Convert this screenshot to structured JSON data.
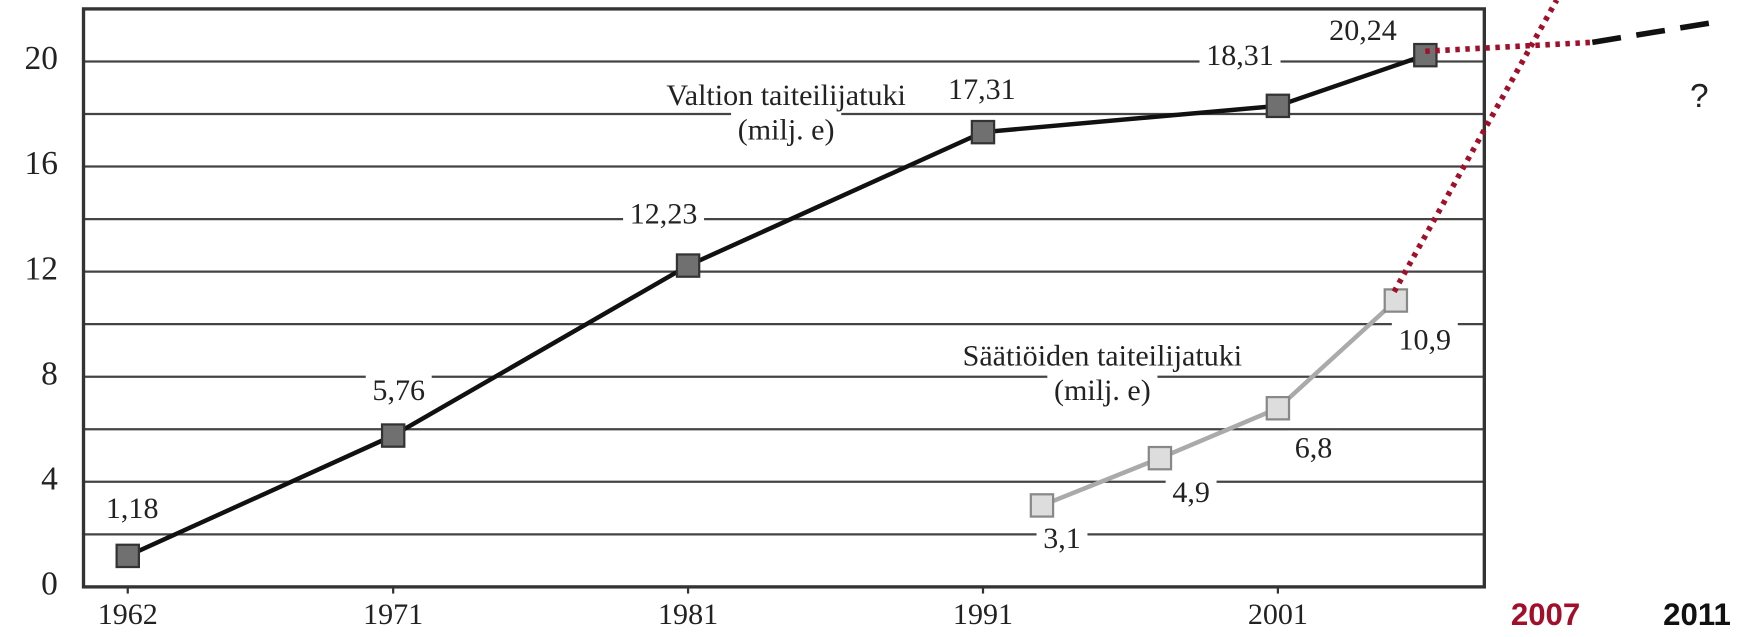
{
  "chart_data": {
    "type": "line",
    "xlim": [
      1960.5,
      2008
    ],
    "xticks": [
      1962,
      1971,
      1981,
      1991,
      2001
    ],
    "ylim": [
      0,
      22
    ],
    "yticks": [
      0,
      4,
      8,
      12,
      16,
      20
    ],
    "yminor": [
      2,
      6,
      10,
      14,
      18
    ],
    "grid": true,
    "series": [
      {
        "name": "Valtion taiteilijatuki",
        "unit": "(milj. e)",
        "color": "#111111",
        "marker_color": "#707070",
        "x": [
          1962,
          1971,
          1981,
          1991,
          2001,
          2006
        ],
        "values": [
          1.18,
          5.76,
          12.23,
          17.31,
          18.31,
          20.24
        ],
        "value_labels": [
          "1,18",
          "5,76",
          "12,23",
          "17,31",
          "18,31",
          "20,24"
        ]
      },
      {
        "name": "Säätiöiden taiteilijatuki",
        "unit": "(milj. e)",
        "color": "#aaaaaa",
        "marker_color": "#dddddd",
        "x": [
          1993,
          1997,
          2001,
          2005
        ],
        "values": [
          3.1,
          4.9,
          6.8,
          10.9
        ],
        "value_labels": [
          "3,1",
          "4,9",
          "6,8",
          "10,9"
        ]
      }
    ],
    "annotations": [
      "?",
      "2007",
      "2011"
    ]
  }
}
